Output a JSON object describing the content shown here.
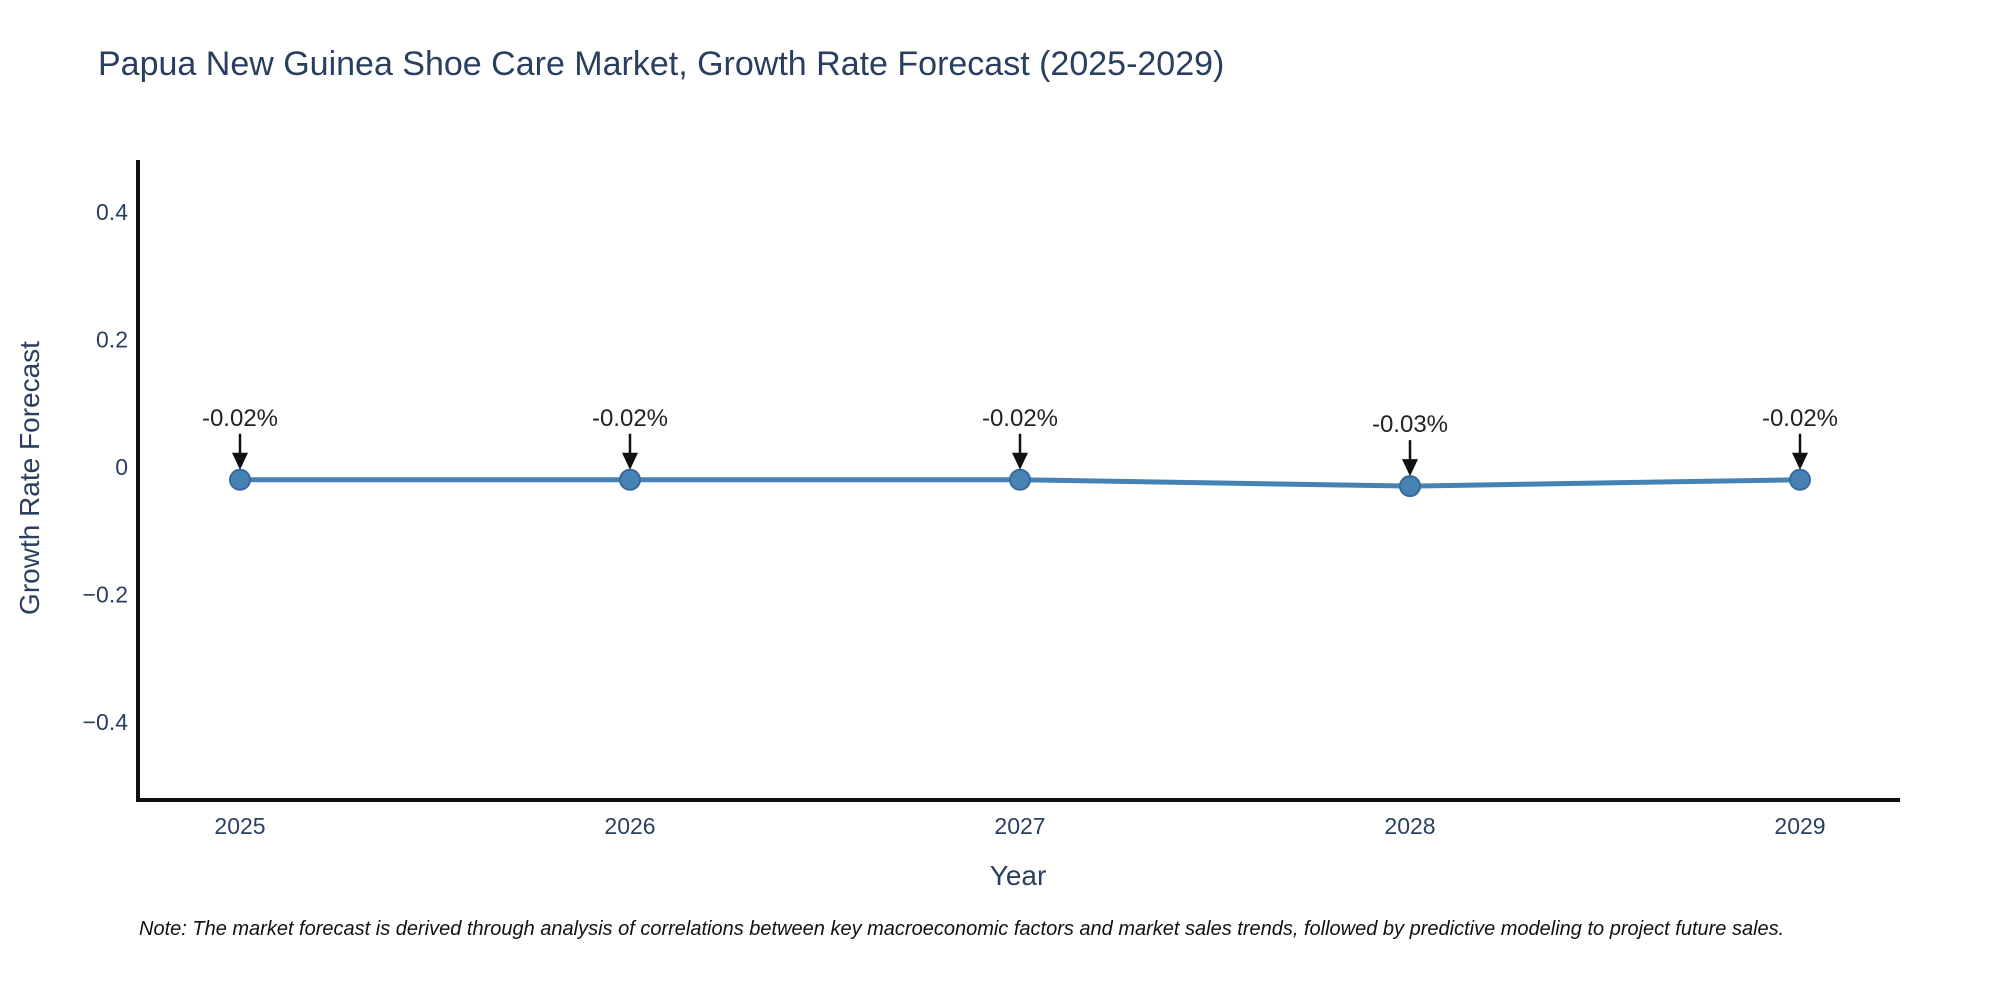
{
  "page": {
    "background": "#ffffff"
  },
  "chart_data": {
    "type": "line",
    "title": "Papua New Guinea Shoe Care Market, Growth Rate Forecast (2025-2029)",
    "xlabel": "Year",
    "ylabel": "Growth Rate Forecast",
    "x": [
      2025,
      2026,
      2027,
      2028,
      2029
    ],
    "series": [
      {
        "name": "Growth Rate Forecast",
        "values": [
          -0.02,
          -0.02,
          -0.02,
          -0.03,
          -0.02
        ],
        "point_labels": [
          "-0.02%",
          "-0.02%",
          "-0.02%",
          "-0.03%",
          "-0.02%"
        ]
      }
    ],
    "yticks": {
      "values": [
        0.4,
        0.2,
        0,
        -0.2,
        -0.4
      ],
      "labels": [
        "0.4",
        "0.2",
        "0",
        "−0.2",
        "−0.4"
      ]
    },
    "xtick_labels": [
      "2025",
      "2026",
      "2027",
      "2028",
      "2029"
    ],
    "ylim": [
      -0.52,
      0.48
    ],
    "grid": false,
    "legend": "none",
    "colors": {
      "line": "#4682b4",
      "marker_fill": "#4682b4",
      "marker_edge": "#38699a",
      "axis": "#111111",
      "tick_text": "#2a3f5f",
      "annotation_text": "#222222",
      "arrow": "#111111"
    },
    "note": "Note: The market forecast is derived through analysis of correlations between key macroeconomic factors and market sales trends, followed by predictive modeling to project future sales."
  }
}
